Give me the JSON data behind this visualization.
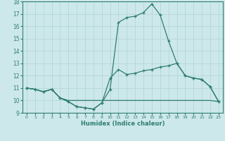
{
  "xlabel": "Humidex (Indice chaleur)",
  "x_values": [
    0,
    1,
    2,
    3,
    4,
    5,
    6,
    7,
    8,
    9,
    10,
    11,
    12,
    13,
    14,
    15,
    16,
    17,
    18,
    19,
    20,
    21,
    22,
    23
  ],
  "line_upper": [
    11.0,
    10.9,
    10.7,
    10.9,
    10.2,
    9.9,
    9.5,
    9.4,
    9.3,
    9.8,
    10.9,
    16.3,
    16.7,
    16.8,
    17.1,
    17.8,
    16.9,
    14.8,
    13.0,
    12.0,
    11.8,
    11.7,
    11.1,
    9.9
  ],
  "line_mid": [
    11.0,
    10.9,
    10.7,
    10.9,
    10.2,
    9.9,
    9.5,
    9.4,
    9.3,
    9.8,
    11.8,
    12.5,
    12.1,
    12.2,
    12.4,
    12.5,
    12.7,
    12.8,
    13.0,
    12.0,
    11.8,
    11.7,
    11.1,
    9.9
  ],
  "line_flat": [
    11.0,
    10.9,
    10.7,
    10.9,
    10.2,
    10.0,
    10.0,
    10.0,
    10.0,
    10.0,
    10.0,
    10.0,
    10.0,
    10.0,
    10.0,
    10.0,
    10.0,
    10.0,
    10.0,
    10.0,
    10.0,
    10.0,
    10.0,
    9.9
  ],
  "color": "#2e7d71",
  "bg_color": "#cde8ea",
  "grid_color": "#b8d8da",
  "ylim": [
    9,
    18
  ],
  "xlim": [
    -0.5,
    23.5
  ],
  "yticks": [
    9,
    10,
    11,
    12,
    13,
    14,
    15,
    16,
    17,
    18
  ],
  "xticks": [
    0,
    1,
    2,
    3,
    4,
    5,
    6,
    7,
    8,
    9,
    10,
    11,
    12,
    13,
    14,
    15,
    16,
    17,
    18,
    19,
    20,
    21,
    22,
    23
  ]
}
